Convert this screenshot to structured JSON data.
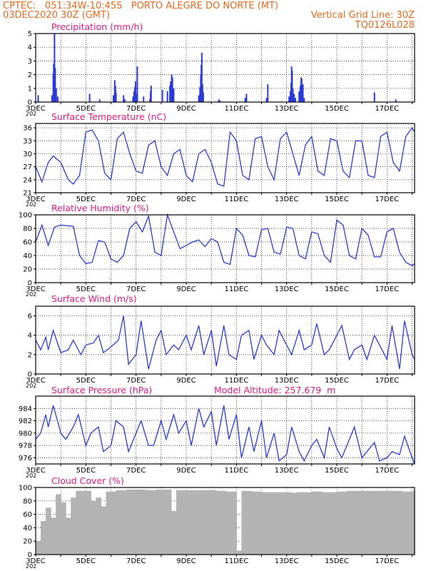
{
  "header": {
    "line1_left": "CPTEC:   051:34W-10:45S   PORTO ALEGRE DO NORTE (MT)",
    "line2_left": "03DEC2020 30Z (GMT)",
    "line2_right": "Vertical Grid Line: 30Z",
    "line3_right": "TQ0126L028"
  },
  "colors": {
    "header": "#e8671a",
    "title": "#e0177f",
    "line": "#2a3bd8",
    "bar": "#2a3bd8",
    "cloud": "#b3b3b3",
    "grid": "#000000"
  },
  "x_axis": {
    "tick_labels": [
      "3DEC",
      "5DEC",
      "7DEC",
      "9DEC",
      "11DEC",
      "13DEC",
      "15DEC",
      "17DEC"
    ],
    "year_stub": "202",
    "start_day": 3,
    "end_day": 18.1
  },
  "chart_data": [
    {
      "type": "bar",
      "title": "Precipitation (mm/h)",
      "ylim": [
        0,
        5
      ],
      "yticks": [
        0,
        1,
        2,
        3,
        4,
        5
      ],
      "x": [
        3.1,
        3.65,
        3.7,
        3.72,
        3.75,
        3.78,
        3.82,
        3.88,
        5.15,
        5.55,
        6.1,
        6.15,
        6.18,
        6.2,
        6.5,
        6.55,
        6.88,
        6.92,
        6.95,
        6.98,
        7.0,
        7.05,
        7.3,
        7.55,
        7.58,
        7.6,
        8.05,
        8.25,
        8.35,
        8.38,
        8.42,
        8.45,
        8.5,
        9.5,
        9.55,
        9.58,
        9.6,
        9.62,
        9.65,
        9.68,
        10.3,
        10.35,
        11.35,
        11.4,
        12.2,
        12.25,
        13.1,
        13.15,
        13.18,
        13.2,
        13.22,
        13.25,
        13.3,
        13.35,
        13.5,
        13.55,
        13.58,
        13.6,
        13.65,
        13.7,
        16.5,
        17.35
      ],
      "y": [
        0.5,
        0.5,
        2.1,
        2.8,
        5.0,
        2.5,
        1.0,
        0.4,
        0.6,
        0.2,
        0.5,
        1.6,
        1.2,
        0.7,
        0.5,
        0.2,
        0.4,
        0.8,
        1.1,
        1.5,
        0.6,
        2.6,
        0.4,
        0.2,
        0.8,
        1.2,
        0.9,
        0.8,
        1.2,
        1.5,
        2.0,
        1.8,
        1.0,
        0.5,
        1.1,
        2.0,
        2.7,
        3.6,
        1.3,
        0.7,
        0.2,
        0.1,
        0.3,
        0.6,
        0.3,
        1.3,
        0.4,
        0.8,
        1.4,
        2.6,
        2.3,
        1.0,
        0.6,
        0.3,
        0.8,
        1.2,
        1.8,
        1.7,
        1.3,
        0.3,
        0.7,
        0.2
      ]
    },
    {
      "type": "line",
      "title": "Surface Temperature (nC)",
      "ylim": [
        21,
        37
      ],
      "yticks": [
        21,
        24,
        27,
        30,
        33,
        36
      ],
      "x": [
        3.0,
        3.25,
        3.5,
        3.7,
        4.0,
        4.3,
        4.5,
        4.75,
        5.0,
        5.25,
        5.5,
        5.75,
        6.0,
        6.25,
        6.5,
        6.75,
        7.0,
        7.25,
        7.5,
        7.75,
        8.0,
        8.25,
        8.5,
        8.75,
        9.0,
        9.25,
        9.5,
        9.75,
        10.0,
        10.25,
        10.5,
        10.75,
        11.0,
        11.25,
        11.5,
        11.75,
        12.0,
        12.25,
        12.5,
        12.75,
        13.0,
        13.25,
        13.5,
        13.75,
        14.0,
        14.25,
        14.5,
        14.75,
        15.0,
        15.25,
        15.5,
        15.75,
        16.0,
        16.25,
        16.5,
        16.75,
        17.0,
        17.25,
        17.5,
        17.75,
        18.0,
        18.1
      ],
      "y": [
        27,
        23.5,
        28,
        29.5,
        28,
        24,
        23,
        25,
        35,
        35.5,
        33,
        25.5,
        24,
        33.5,
        35,
        30,
        26,
        25.5,
        32,
        33,
        27,
        25,
        30,
        31,
        25,
        23.5,
        30,
        31,
        28,
        23,
        22.5,
        35,
        33,
        25,
        24,
        33.5,
        34,
        27,
        24,
        33.5,
        35,
        30,
        25,
        32,
        34,
        26,
        25,
        33.5,
        33,
        26,
        24.5,
        33,
        33,
        25,
        24.5,
        34,
        35,
        28,
        26,
        34,
        36,
        35
      ]
    },
    {
      "type": "line",
      "title": "Relative Humidity (%)",
      "ylim": [
        0,
        100
      ],
      "yticks": [
        0,
        20,
        40,
        60,
        80,
        100
      ],
      "x": [
        3.0,
        3.25,
        3.5,
        3.75,
        4.0,
        4.5,
        4.75,
        5.0,
        5.25,
        5.5,
        5.75,
        6.0,
        6.25,
        6.5,
        6.75,
        7.0,
        7.25,
        7.5,
        7.75,
        8.0,
        8.25,
        8.5,
        8.75,
        9.0,
        9.25,
        9.5,
        9.75,
        10.0,
        10.25,
        10.5,
        10.75,
        11.0,
        11.25,
        11.5,
        11.75,
        12.0,
        12.25,
        12.5,
        12.75,
        13.0,
        13.25,
        13.5,
        13.75,
        14.0,
        14.25,
        14.5,
        14.75,
        15.0,
        15.25,
        15.5,
        15.75,
        16.0,
        16.25,
        16.5,
        16.75,
        17.0,
        17.25,
        17.5,
        17.75,
        18.0,
        18.1
      ],
      "y": [
        60,
        85,
        55,
        82,
        85,
        83,
        40,
        28,
        30,
        62,
        60,
        35,
        30,
        40,
        80,
        90,
        75,
        98,
        45,
        40,
        100,
        75,
        50,
        55,
        60,
        63,
        53,
        65,
        60,
        30,
        27,
        80,
        70,
        40,
        38,
        78,
        80,
        45,
        42,
        82,
        80,
        40,
        35,
        75,
        72,
        40,
        30,
        92,
        85,
        40,
        35,
        80,
        70,
        38,
        38,
        75,
        80,
        45,
        30,
        25,
        28
      ]
    },
    {
      "type": "line",
      "title": "Surface Wind (m/s)",
      "ylim": [
        0,
        7
      ],
      "yticks": [
        0,
        2,
        4,
        6
      ],
      "x": [
        3.0,
        3.2,
        3.4,
        3.5,
        3.7,
        4.0,
        4.3,
        4.5,
        4.8,
        5.0,
        5.3,
        5.5,
        5.7,
        6.0,
        6.3,
        6.5,
        6.7,
        7.0,
        7.2,
        7.5,
        7.8,
        8.0,
        8.2,
        8.5,
        8.7,
        9.0,
        9.2,
        9.5,
        9.7,
        10.0,
        10.2,
        10.5,
        10.7,
        11.0,
        11.2,
        11.5,
        11.7,
        12.0,
        12.2,
        12.5,
        12.7,
        13.0,
        13.2,
        13.5,
        13.7,
        14.0,
        14.2,
        14.5,
        14.7,
        15.0,
        15.2,
        15.5,
        15.7,
        16.0,
        16.2,
        16.5,
        16.7,
        17.0,
        17.2,
        17.5,
        17.7,
        18.0,
        18.1
      ],
      "y": [
        3.5,
        2.5,
        3.8,
        2.5,
        4.5,
        2.2,
        2.5,
        3.5,
        2.0,
        3.0,
        3.2,
        4.0,
        2.2,
        2.8,
        3.5,
        6.0,
        1.0,
        2.0,
        5.5,
        0.5,
        3.5,
        4.5,
        2.0,
        3.0,
        2.5,
        4.0,
        2.5,
        5.0,
        2.0,
        4.5,
        0.8,
        5.0,
        2.0,
        1.5,
        4.0,
        4.5,
        1.5,
        4.0,
        3.0,
        2.0,
        4.5,
        3.0,
        2.0,
        4.5,
        2.5,
        3.0,
        5.2,
        2.0,
        2.5,
        4.0,
        5.0,
        1.5,
        2.5,
        3.0,
        1.5,
        4.0,
        3.0,
        1.5,
        5.0,
        0.5,
        5.5,
        2.0,
        1.5
      ]
    },
    {
      "type": "line",
      "title": "Surface Pressure (hPa)",
      "annotation": "Model Altitude: 257.679  m",
      "ylim": [
        975,
        986
      ],
      "yticks": [
        976,
        978,
        980,
        982,
        984
      ],
      "x": [
        3.0,
        3.2,
        3.4,
        3.5,
        3.7,
        4.0,
        4.2,
        4.5,
        4.7,
        5.0,
        5.2,
        5.5,
        5.7,
        6.0,
        6.2,
        6.5,
        6.7,
        7.0,
        7.2,
        7.5,
        7.7,
        8.0,
        8.2,
        8.5,
        8.7,
        9.0,
        9.2,
        9.5,
        9.7,
        10.0,
        10.2,
        10.5,
        10.7,
        11.0,
        11.2,
        11.5,
        11.7,
        12.0,
        12.2,
        12.5,
        12.7,
        13.0,
        13.2,
        13.5,
        13.7,
        14.0,
        14.2,
        14.5,
        14.7,
        15.0,
        15.2,
        15.5,
        15.7,
        16.0,
        16.2,
        16.5,
        16.7,
        17.0,
        17.2,
        17.5,
        17.7,
        18.0,
        18.1
      ],
      "y": [
        979,
        980,
        983,
        981,
        984.5,
        980,
        979,
        981,
        983,
        978,
        980,
        981,
        977,
        978,
        982,
        981,
        977,
        980,
        982,
        978,
        978,
        982,
        979,
        983,
        980,
        982,
        978,
        984,
        981,
        983.5,
        978,
        984.5,
        979,
        983,
        976,
        981,
        977,
        982,
        976,
        980,
        975.5,
        976.5,
        981,
        977,
        975.5,
        978,
        979,
        976,
        981,
        977.5,
        976,
        979,
        981,
        976,
        977,
        978.5,
        975.5,
        976,
        977,
        976.5,
        979.5,
        976,
        975
      ]
    },
    {
      "type": "bar",
      "title": "Cloud Cover (%)",
      "ylim": [
        0,
        100
      ],
      "yticks": [
        0,
        20,
        40,
        60,
        80,
        100
      ],
      "x": [
        3.0,
        3.2,
        3.4,
        3.6,
        3.8,
        4.0,
        4.2,
        4.4,
        4.6,
        4.8,
        5.0,
        5.2,
        5.4,
        5.6,
        5.8,
        6.0,
        6.2,
        6.4,
        6.6,
        6.8,
        7.0,
        7.2,
        7.4,
        7.6,
        7.8,
        8.0,
        8.2,
        8.4,
        8.6,
        8.8,
        9.0,
        9.2,
        9.4,
        9.6,
        9.8,
        10.0,
        10.2,
        10.4,
        10.6,
        10.8,
        11.0,
        11.2,
        11.4,
        11.6,
        11.8,
        12.0,
        12.2,
        12.4,
        12.6,
        12.8,
        13.0,
        13.2,
        13.4,
        13.6,
        13.8,
        14.0,
        14.2,
        14.4,
        14.6,
        14.8,
        15.0,
        15.2,
        15.4,
        15.6,
        15.8,
        16.0,
        16.2,
        16.4,
        16.6,
        16.8,
        17.0,
        17.2,
        17.4,
        17.6,
        17.8,
        18.0
      ],
      "y": [
        20,
        50,
        70,
        55,
        90,
        78,
        55,
        85,
        95,
        95,
        95,
        80,
        85,
        72,
        94,
        94,
        96,
        96,
        97,
        97,
        97,
        97,
        96,
        96,
        97,
        97,
        97,
        65,
        96,
        96,
        96,
        96,
        96,
        96,
        96,
        96,
        95,
        95,
        94,
        94,
        6,
        95,
        95,
        94,
        94,
        93,
        93,
        93,
        93,
        93,
        93,
        92,
        93,
        93,
        93,
        94,
        94,
        93,
        93,
        93,
        94,
        94,
        95,
        95,
        95,
        95,
        95,
        95,
        95,
        95,
        95,
        95,
        95,
        94,
        94,
        95
      ]
    }
  ]
}
